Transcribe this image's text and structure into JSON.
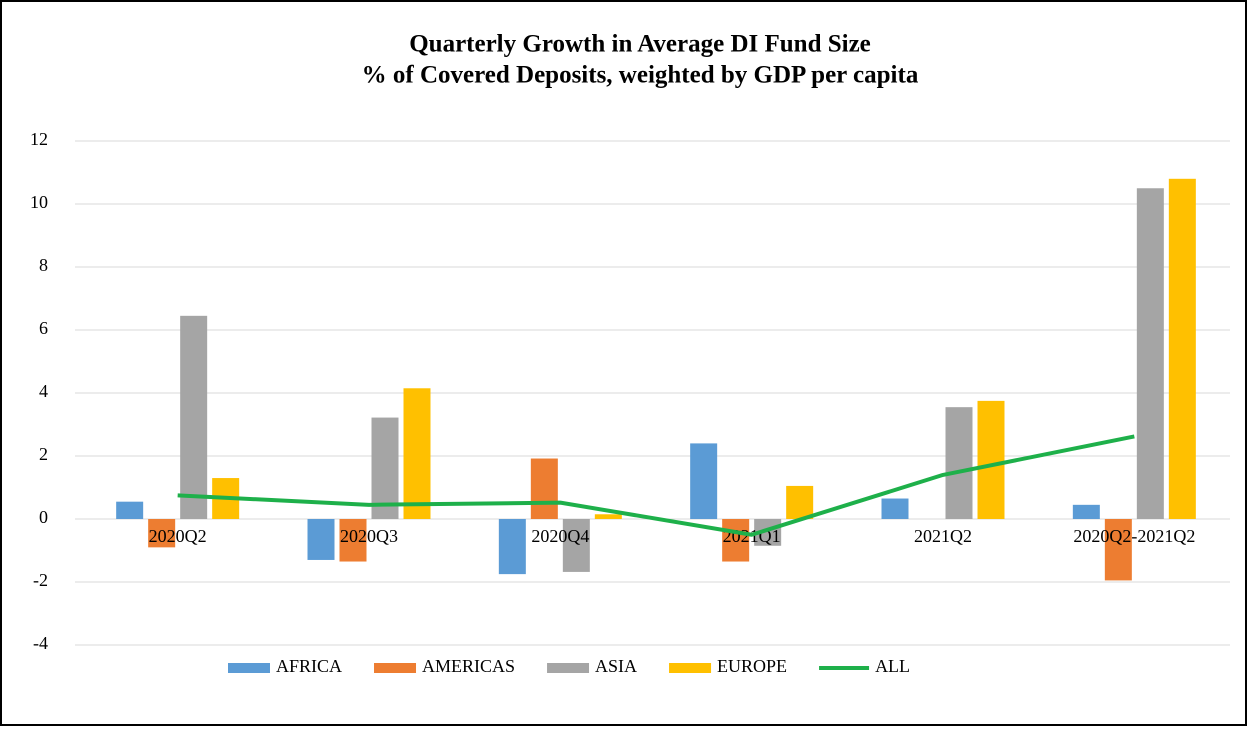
{
  "chart_data": {
    "type": "bar",
    "title": [
      "Quarterly Growth in Average DI Fund Size",
      "% of Covered Deposits, weighted by GDP per capita"
    ],
    "categories": [
      "2020Q2",
      "2020Q3",
      "2020Q4",
      "2021Q1",
      "2021Q2",
      "2020Q2-2021Q2"
    ],
    "series": [
      {
        "name": "AFRICA",
        "color": "#5b9bd5",
        "values": [
          0.55,
          -1.3,
          -1.75,
          2.4,
          0.65,
          0.45
        ]
      },
      {
        "name": "AMERICAS",
        "color": "#ed7d31",
        "values": [
          -0.9,
          -1.35,
          1.92,
          -1.35,
          0,
          -1.95
        ]
      },
      {
        "name": "ASIA",
        "color": "#a5a5a5",
        "values": [
          6.45,
          3.22,
          -1.68,
          -0.85,
          3.55,
          10.5
        ]
      },
      {
        "name": "EUROPE",
        "color": "#ffc000",
        "values": [
          1.3,
          4.15,
          0.15,
          1.05,
          3.75,
          10.8
        ]
      },
      {
        "name": "ALL",
        "color": "#1eb04a",
        "type": "line",
        "values": [
          0.75,
          0.45,
          0.52,
          -0.5,
          1.4,
          2.62
        ]
      }
    ],
    "ylim": [
      -4,
      12
    ],
    "yticks": [
      -4,
      -2,
      0,
      2,
      4,
      6,
      8,
      10,
      12
    ],
    "grid": true,
    "legend": "bottom"
  }
}
